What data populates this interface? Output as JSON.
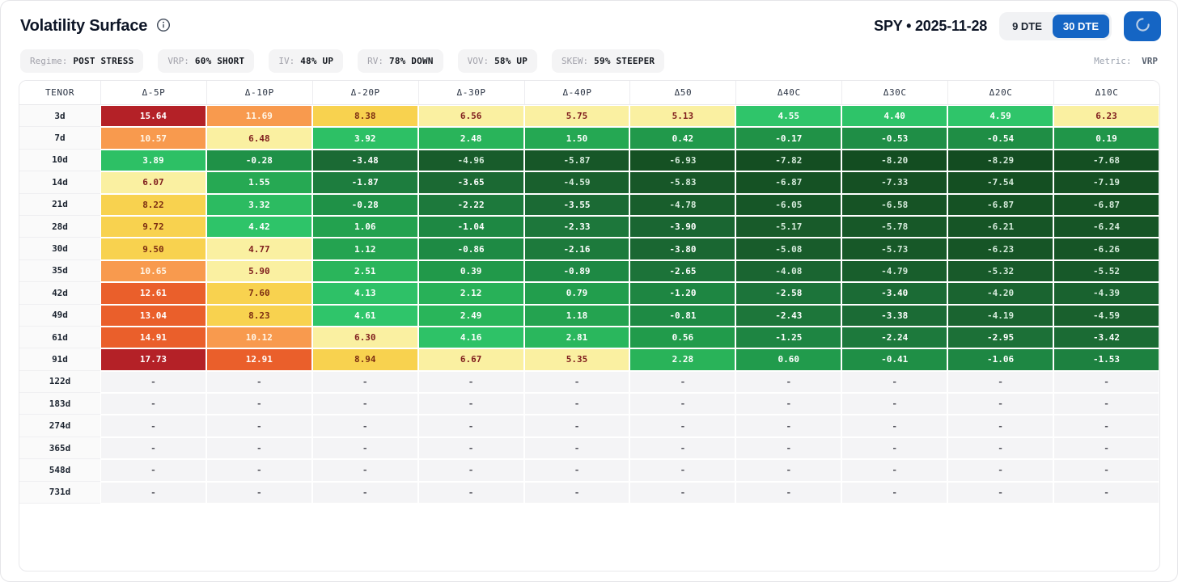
{
  "header": {
    "title": "Volatility Surface",
    "symbol": "SPY",
    "separator": "•",
    "date": "2025-11-28",
    "dte_toggle": {
      "options": [
        "9 DTE",
        "30 DTE"
      ],
      "active": "30 DTE"
    }
  },
  "badges": [
    {
      "label": "Regime:",
      "value": "POST STRESS"
    },
    {
      "label": "VRP:",
      "value": "60% SHORT"
    },
    {
      "label": "IV:",
      "value": "48% UP"
    },
    {
      "label": "RV:",
      "value": "78% DOWN"
    },
    {
      "label": "VOV:",
      "value": "58% UP"
    },
    {
      "label": "SKEW:",
      "value": "59% STEEPER"
    }
  ],
  "metric": {
    "label": "Metric:",
    "value": "VRP"
  },
  "colors": {
    "accent_blue": "#1565c4",
    "heat_red": "#b42127",
    "heat_orange_dark": "#ea5f2b",
    "heat_orange": "#f89a4e",
    "heat_gold": "#f8d24f",
    "heat_pale_yellow": "#faf0a1",
    "heat_green_high": "#2fc66b",
    "heat_green_low": "#124a20",
    "empty_cell": "#f4f4f6"
  },
  "chart_data": {
    "type": "heatmap",
    "title": "Volatility Surface (VRP metric)",
    "columns": [
      "TENOR",
      "Δ-5P",
      "Δ-10P",
      "Δ-20P",
      "Δ-30P",
      "Δ-40P",
      "Δ50",
      "Δ40C",
      "Δ30C",
      "Δ20C",
      "Δ10C"
    ],
    "empty_placeholder": "-",
    "color_scale": "high positive = red/orange/yellow, low/negative = green (darker = more negative)",
    "rows": [
      {
        "tenor": "3d",
        "values": [
          15.64,
          11.69,
          8.38,
          6.56,
          5.75,
          5.13,
          4.55,
          4.4,
          4.59,
          6.23
        ]
      },
      {
        "tenor": "7d",
        "values": [
          10.57,
          6.48,
          3.92,
          2.48,
          1.5,
          0.42,
          -0.17,
          -0.53,
          -0.54,
          0.19
        ]
      },
      {
        "tenor": "10d",
        "values": [
          3.89,
          -0.28,
          -3.48,
          -4.96,
          -5.87,
          -6.93,
          -7.82,
          -8.2,
          -8.29,
          -7.68
        ]
      },
      {
        "tenor": "14d",
        "values": [
          6.07,
          1.55,
          -1.87,
          -3.65,
          -4.59,
          -5.83,
          -6.87,
          -7.33,
          -7.54,
          -7.19
        ]
      },
      {
        "tenor": "21d",
        "values": [
          8.22,
          3.32,
          -0.28,
          -2.22,
          -3.55,
          -4.78,
          -6.05,
          -6.58,
          -6.87,
          -6.87
        ]
      },
      {
        "tenor": "28d",
        "values": [
          9.72,
          4.42,
          1.06,
          -1.04,
          -2.33,
          -3.9,
          -5.17,
          -5.78,
          -6.21,
          -6.24
        ]
      },
      {
        "tenor": "30d",
        "values": [
          9.5,
          4.77,
          1.12,
          -0.86,
          -2.16,
          -3.8,
          -5.08,
          -5.73,
          -6.23,
          -6.26
        ]
      },
      {
        "tenor": "35d",
        "values": [
          10.65,
          5.9,
          2.51,
          0.39,
          -0.89,
          -2.65,
          -4.08,
          -4.79,
          -5.32,
          -5.52
        ]
      },
      {
        "tenor": "42d",
        "values": [
          12.61,
          7.6,
          4.13,
          2.12,
          0.79,
          -1.2,
          -2.58,
          -3.4,
          -4.2,
          -4.39
        ]
      },
      {
        "tenor": "49d",
        "values": [
          13.04,
          8.23,
          4.61,
          2.49,
          1.18,
          -0.81,
          -2.43,
          -3.38,
          -4.19,
          -4.59
        ]
      },
      {
        "tenor": "61d",
        "values": [
          14.91,
          10.12,
          6.3,
          4.16,
          2.81,
          0.56,
          -1.25,
          -2.24,
          -2.95,
          -3.42
        ]
      },
      {
        "tenor": "91d",
        "values": [
          17.73,
          12.91,
          8.94,
          6.67,
          5.35,
          2.28,
          0.6,
          -0.41,
          -1.06,
          -1.53
        ]
      },
      {
        "tenor": "122d",
        "values": [
          null,
          null,
          null,
          null,
          null,
          null,
          null,
          null,
          null,
          null
        ]
      },
      {
        "tenor": "183d",
        "values": [
          null,
          null,
          null,
          null,
          null,
          null,
          null,
          null,
          null,
          null
        ]
      },
      {
        "tenor": "274d",
        "values": [
          null,
          null,
          null,
          null,
          null,
          null,
          null,
          null,
          null,
          null
        ]
      },
      {
        "tenor": "365d",
        "values": [
          null,
          null,
          null,
          null,
          null,
          null,
          null,
          null,
          null,
          null
        ]
      },
      {
        "tenor": "548d",
        "values": [
          null,
          null,
          null,
          null,
          null,
          null,
          null,
          null,
          null,
          null
        ]
      },
      {
        "tenor": "731d",
        "values": [
          null,
          null,
          null,
          null,
          null,
          null,
          null,
          null,
          null,
          null
        ]
      }
    ]
  }
}
